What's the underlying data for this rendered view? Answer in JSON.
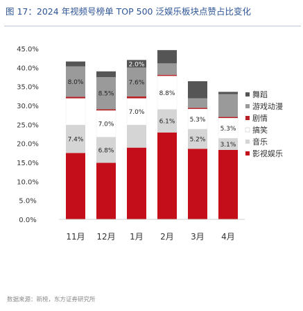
{
  "title": "图 17：2024 年视频号榜单 TOP 500 泛娱乐板块点赞占比变化",
  "source": "数据来源：新榜，东方证券研究所",
  "colors": {
    "title": "#2e5597",
    "film": "#c40f1a",
    "music": "#d5d5d5",
    "funny": "#ffffff",
    "drama": "#b82025",
    "game_anime": "#9a9a9a",
    "dance": "#555555"
  },
  "chart_data": {
    "type": "bar",
    "stacked": true,
    "categories": [
      "11月",
      "12月",
      "1月",
      "2月",
      "3月",
      "4月"
    ],
    "ylim": [
      0,
      0.45
    ],
    "yticks": [
      "0.0%",
      "5.0%",
      "10.0%",
      "15.0%",
      "20.0%",
      "25.0%",
      "30.0%",
      "35.0%",
      "40.0%",
      "45.0%"
    ],
    "legend_position": "right",
    "series": [
      {
        "name": "影视娱乐",
        "key": "film",
        "values": [
          0.175,
          0.149,
          0.189,
          0.229,
          0.186,
          0.183
        ],
        "labels": [
          "",
          "",
          "",
          "",
          "",
          ""
        ]
      },
      {
        "name": "音乐",
        "key": "music",
        "values": [
          0.074,
          0.068,
          0.06,
          0.061,
          0.052,
          0.031
        ],
        "labels": [
          "7.4%",
          "6.8%",
          "",
          "6.1%",
          "5.2%",
          "3.1%"
        ]
      },
      {
        "name": "搞笑",
        "key": "funny",
        "values": [
          0.07,
          0.07,
          0.07,
          0.088,
          0.053,
          0.053
        ],
        "labels": [
          "",
          "7.0%",
          "7.0%",
          "8.8%",
          "5.3%",
          "5.3%"
        ]
      },
      {
        "name": "剧情",
        "key": "drama",
        "values": [
          0.004,
          0.003,
          0.005,
          0.003,
          0.003,
          0.003
        ],
        "labels": [
          "",
          "",
          "",
          "",
          "",
          ""
        ]
      },
      {
        "name": "游戏动漫",
        "key": "game_anime",
        "values": [
          0.08,
          0.085,
          0.076,
          0.03,
          0.025,
          0.06
        ],
        "labels": [
          "8.0%",
          "8.5%",
          "7.6%",
          "",
          "",
          ""
        ]
      },
      {
        "name": "舞蹈",
        "key": "dance",
        "values": [
          0.013,
          0.015,
          0.02,
          0.035,
          0.045,
          0.006
        ],
        "labels": [
          "",
          "",
          "2.0%",
          "",
          "",
          ""
        ]
      }
    ]
  }
}
